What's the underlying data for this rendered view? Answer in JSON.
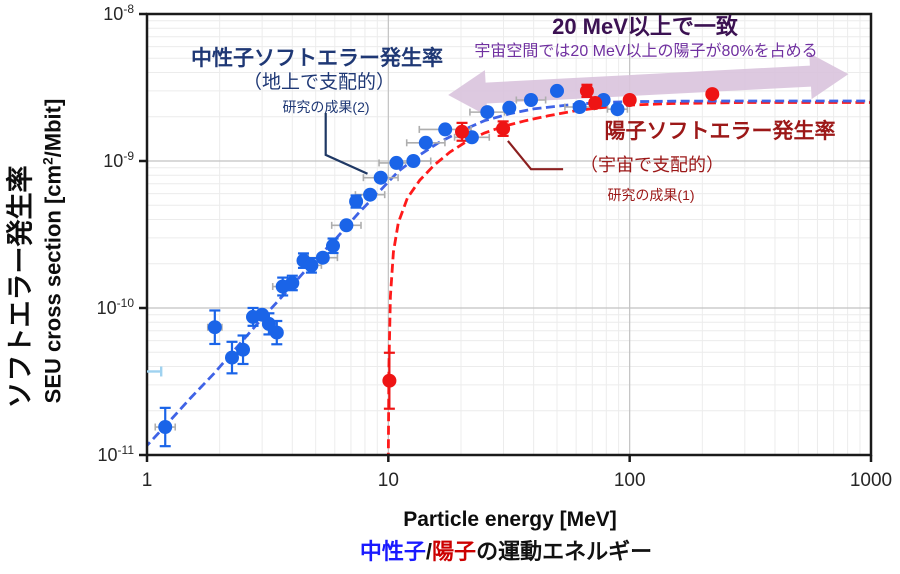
{
  "figure": {
    "y_axis_title_jp": "ソフトエラー発生率",
    "y_axis_title_en_parts": {
      "pre": "SEU cross section [cm",
      "sup": "2",
      "post": "/Mbit]"
    },
    "x_axis_title_en": "Particle energy [MeV]",
    "x_axis_title_jp_parts": {
      "neutron": "中性子",
      "slash": "/",
      "proton": "陽子",
      "rest": "の運動エネルギー"
    }
  },
  "colors": {
    "neutron_point": "#1a64e8",
    "neutron_line": "#3f63e6",
    "neutron_label": "#1f3875",
    "proton_point": "#ee1414",
    "proton_line": "#ff1a1a",
    "proton_label": "#9c1818",
    "proton_callout": "#8b1f1f",
    "neutron_callout": "#1f3864",
    "match_title": "#3b1152",
    "match_sub": "#7030a0",
    "arrow_fill": "#d9c3dd",
    "grid_minor": "#ececec",
    "grid_major": "#c2c2c2",
    "axis": "#1a1a1a",
    "tick_label": "#262626",
    "xjp_neutron": "#1a1aff",
    "xjp_proton": "#cc0000",
    "gray_err": "#aeaeae",
    "partial_bar": "#9fd2f0"
  },
  "chart_data": {
    "type": "scatter",
    "title": "",
    "x_axis": {
      "label": "Particle energy [MeV]",
      "scale": "log",
      "range": [
        1,
        1000
      ],
      "ticks": [
        {
          "label": "1",
          "value": 1
        },
        {
          "label": "10",
          "value": 10
        },
        {
          "label": "100",
          "value": 100
        },
        {
          "label": "1000",
          "value": 1000
        }
      ]
    },
    "y_axis": {
      "label": "SEU cross section [cm2/Mbit]",
      "scale": "log",
      "range": [
        1e-11,
        1e-08
      ],
      "ticks": [
        {
          "base": "10",
          "exp": "-8",
          "value": 1e-08
        },
        {
          "base": "10",
          "exp": "-9",
          "value": 1e-09
        },
        {
          "base": "10",
          "exp": "-10",
          "value": 1e-10
        },
        {
          "base": "10",
          "exp": "-11",
          "value": 1e-11
        }
      ]
    },
    "grid": true,
    "legend": "none",
    "series": [
      {
        "name": "neutron soft error rate (中性子)",
        "marker": "circle",
        "line_style": "dashed",
        "points": [
          {
            "e": 1.19,
            "s": 1.55e-11,
            "yf": 1.35,
            "xf": 1.1
          },
          {
            "e": 1.91,
            "s": 7.4e-11,
            "yf": 1.3,
            "xf": 1.07
          },
          {
            "e": 2.25,
            "s": 4.6e-11,
            "yf": 1.28
          },
          {
            "e": 2.5,
            "s": 5.2e-11,
            "yf": 1.25
          },
          {
            "e": 2.75,
            "s": 8.7e-11,
            "yf": 1.15
          },
          {
            "e": 3.0,
            "s": 9e-11
          },
          {
            "e": 3.2,
            "s": 7.8e-11,
            "yf": 1.18
          },
          {
            "e": 3.45,
            "s": 6.8e-11,
            "yf": 1.2
          },
          {
            "e": 3.65,
            "s": 1.4e-10,
            "yf": 1.15,
            "xf": 1.1
          },
          {
            "e": 4.0,
            "s": 1.48e-10,
            "yf": 1.12
          },
          {
            "e": 4.45,
            "s": 2.1e-10,
            "yf": 1.12
          },
          {
            "e": 4.8,
            "s": 1.95e-10,
            "yf": 1.12,
            "xf": 1.1
          },
          {
            "e": 5.35,
            "s": 2.2e-10,
            "xf": 1.15
          },
          {
            "e": 5.9,
            "s": 2.65e-10,
            "yf": 1.12
          },
          {
            "e": 6.7,
            "s": 3.65e-10,
            "xf": 1.15
          },
          {
            "e": 7.35,
            "s": 5.3e-10,
            "yf": 1.1
          },
          {
            "e": 8.4,
            "s": 5.9e-10,
            "xf": 1.15
          },
          {
            "e": 9.3,
            "s": 7.7e-10,
            "xf": 1.18
          },
          {
            "e": 10.8,
            "s": 9.7e-10,
            "xf": 1.18
          },
          {
            "e": 12.7,
            "s": 1e-09,
            "xf": 1.18
          },
          {
            "e": 14.3,
            "s": 1.33e-09,
            "xf": 1.2
          },
          {
            "e": 17.2,
            "s": 1.64e-09,
            "xf": 1.28
          },
          {
            "e": 22.2,
            "s": 1.45e-09,
            "xf": 1.18
          },
          {
            "e": 25.7,
            "s": 2.15e-09,
            "xf": 1.18
          },
          {
            "e": 31.7,
            "s": 2.3e-09
          },
          {
            "e": 39,
            "s": 2.6e-09,
            "xf": 1.15
          },
          {
            "e": 50,
            "s": 3e-09
          },
          {
            "e": 62,
            "s": 2.33e-09,
            "xf": 1.15
          },
          {
            "e": 78,
            "s": 2.6e-09
          },
          {
            "e": 89,
            "s": 2.25e-09,
            "xf": 1.1
          }
        ],
        "fit_curve": [
          [
            0.97,
            1.1e-11
          ],
          [
            1.2,
            1.6e-11
          ],
          [
            1.5,
            2.4e-11
          ],
          [
            1.9,
            3.6e-11
          ],
          [
            2.4,
            5.6e-11
          ],
          [
            3,
            8.5e-11
          ],
          [
            3.8,
            1.3e-10
          ],
          [
            4.8,
            2e-10
          ],
          [
            6,
            2.9e-10
          ],
          [
            7.5,
            4.4e-10
          ],
          [
            9,
            6e-10
          ],
          [
            11,
            8.5e-10
          ],
          [
            13.5,
            1.1e-09
          ],
          [
            16,
            1.32e-09
          ],
          [
            20,
            1.6e-09
          ],
          [
            25,
            1.88e-09
          ],
          [
            32,
            2.1e-09
          ],
          [
            40,
            2.26e-09
          ],
          [
            55,
            2.4e-09
          ],
          [
            75,
            2.5e-09
          ],
          [
            100,
            2.53e-09
          ],
          [
            150,
            2.55e-09
          ],
          [
            300,
            2.56e-09
          ],
          [
            1000,
            2.56e-09
          ]
        ]
      },
      {
        "name": "proton soft error rate (陽子)",
        "marker": "circle",
        "line_style": "dashed",
        "points": [
          {
            "e": 10.1,
            "s": 3.2e-11,
            "yf": 1.55
          },
          {
            "e": 20.2,
            "s": 1.58e-09,
            "yf": 1.15
          },
          {
            "e": 29.9,
            "s": 1.66e-09,
            "yf": 1.12
          },
          {
            "e": 66.5,
            "s": 3e-09,
            "yf": 1.1
          },
          {
            "e": 72,
            "s": 2.48e-09
          },
          {
            "e": 100,
            "s": 2.6e-09
          },
          {
            "e": 220,
            "s": 2.85e-09
          }
        ],
        "fit_curve": [
          [
            10,
            9e-12
          ],
          [
            10.05,
            4e-11
          ],
          [
            10.2,
            1.2e-10
          ],
          [
            10.5,
            2.4e-10
          ],
          [
            11,
            3.8e-10
          ],
          [
            12,
            5.6e-10
          ],
          [
            13.5,
            7.4e-10
          ],
          [
            15.5,
            9.4e-10
          ],
          [
            18,
            1.15e-09
          ],
          [
            21,
            1.35e-09
          ],
          [
            25,
            1.55e-09
          ],
          [
            30,
            1.72e-09
          ],
          [
            37,
            1.88e-09
          ],
          [
            46,
            2.03e-09
          ],
          [
            58,
            2.18e-09
          ],
          [
            75,
            2.3e-09
          ],
          [
            100,
            2.4e-09
          ],
          [
            150,
            2.46e-09
          ],
          [
            300,
            2.5e-09
          ],
          [
            1000,
            2.5e-09
          ]
        ]
      }
    ],
    "annotations": {
      "neutron": {
        "title": "中性子ソフトエラー発生率",
        "subtitle": "（地上で支配的）",
        "ref": "研究の成果(2)",
        "callout": [
          [
            5.5,
            2.12e-09
          ],
          [
            5.5,
            1.1e-09
          ],
          [
            8.2,
            8.2e-10
          ]
        ]
      },
      "proton": {
        "title": "陽子ソフトエラー発生率",
        "subtitle": "（宇宙で支配的）",
        "ref": "研究の成果(1)",
        "callout": [
          [
            31.3,
            1.37e-09
          ],
          [
            39,
            8.8e-10
          ],
          [
            53,
            8.8e-10
          ]
        ]
      },
      "match": {
        "title": "20 MeV以上で一致",
        "subtitle": "宇宙空間では20 MeV以上の陽子が80%を占める",
        "arrow": {
          "from": [
            17.7,
            2.81e-09
          ],
          "to": [
            806,
            3.9e-09
          ]
        }
      }
    },
    "extras": {
      "partial_error_bar": {
        "s": 3.7e-11,
        "e_from": 1.0,
        "e_to": 1.145
      }
    }
  }
}
